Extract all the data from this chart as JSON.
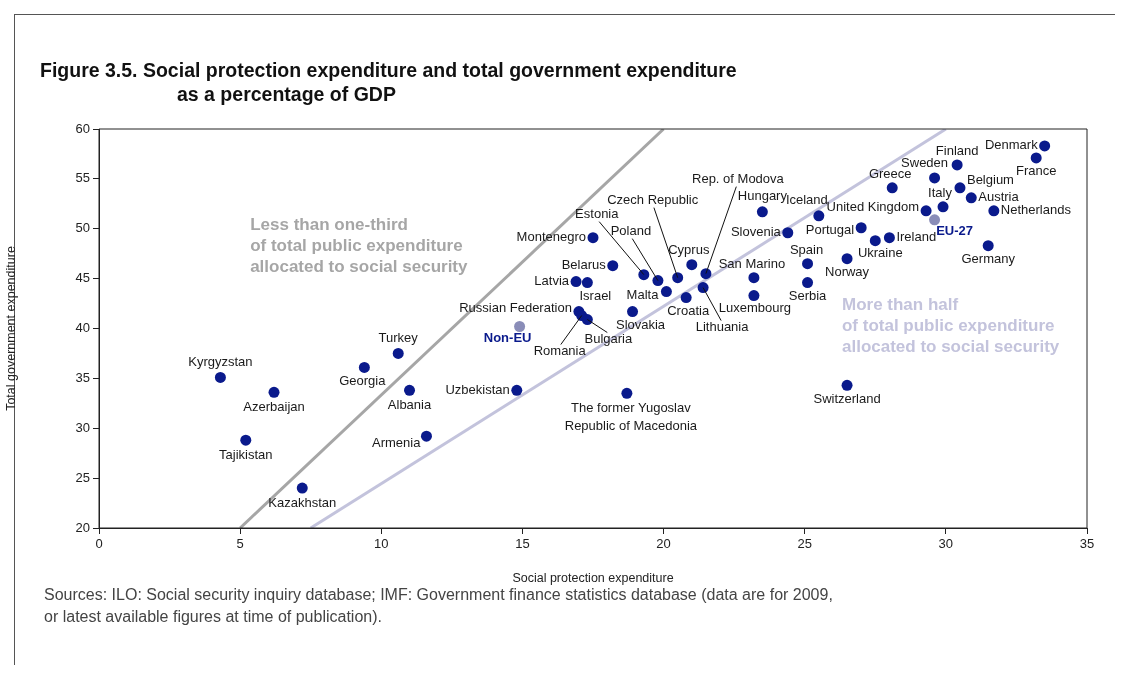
{
  "chart_data": {
    "type": "scatter",
    "title": "Figure 3.5.  Social protection expenditure and total government expenditure\nas a percentage of GDP",
    "xlabel": "Social protection expenditure",
    "ylabel": "Total government expenditure",
    "xlim": [
      0,
      35
    ],
    "xticks": [
      0,
      5,
      10,
      15,
      20,
      25,
      30,
      35
    ],
    "ylim": [
      20,
      60
    ],
    "yticks": [
      20,
      25,
      30,
      35,
      40,
      45,
      50,
      55,
      60
    ],
    "marker": "circle",
    "legend": false,
    "series": [
      {
        "type": "scatter",
        "color": "#0a1a8c",
        "x": [
          4.3,
          6.2,
          5.2,
          7.2,
          9.4,
          10.6,
          11.0,
          11.6,
          14.8,
          17.0,
          17.1,
          17.3,
          16.9,
          17.3,
          18.2,
          17.5,
          18.9,
          19.3,
          19.8,
          20.1,
          20.5,
          20.8,
          21.0,
          21.5,
          21.4,
          23.5,
          23.2,
          23.2,
          24.4,
          25.5,
          25.1,
          25.1,
          26.5,
          27.0,
          27.5,
          28.0,
          28.1,
          29.3,
          29.9,
          29.6,
          30.4,
          30.5,
          30.9,
          31.7,
          31.5,
          33.5,
          33.2,
          26.5,
          18.7
        ],
        "values": [
          35.1,
          33.6,
          28.8,
          24.0,
          36.1,
          37.5,
          33.8,
          29.2,
          33.8,
          41.7,
          41.3,
          40.9,
          44.7,
          44.6,
          46.3,
          49.1,
          41.7,
          45.4,
          44.8,
          43.7,
          45.1,
          43.1,
          46.4,
          45.5,
          44.1,
          51.7,
          45.1,
          43.3,
          49.6,
          51.3,
          46.5,
          44.6,
          47.0,
          50.1,
          48.8,
          49.1,
          54.1,
          51.8,
          52.2,
          55.1,
          56.4,
          54.1,
          53.1,
          51.8,
          48.3,
          58.3,
          57.1,
          34.3,
          33.5
        ]
      },
      {
        "type": "scatter",
        "color": "#8a8db8",
        "x": [
          14.9,
          29.6
        ],
        "values": [
          40.2,
          50.9
        ]
      },
      {
        "type": "line",
        "marker": "none",
        "name": "Less than one-third\nof total public expenditure\nallocated to social security",
        "color": "#a6a6a6",
        "x": [
          5,
          20
        ],
        "values": [
          20,
          60
        ]
      },
      {
        "type": "line",
        "marker": "none",
        "name": "More than half\nof total public expenditure\nallocated to social security",
        "color": "#c3c3dc",
        "x": [
          7.5,
          30
        ],
        "values": [
          20,
          60
        ]
      }
    ],
    "annotations": [
      {
        "text": "Kyrgyzstan",
        "x": 4.3,
        "y": 35.1
      },
      {
        "text": "Azerbaijan",
        "x": 6.2,
        "y": 33.6
      },
      {
        "text": "Tajikistan",
        "x": 5.2,
        "y": 28.8
      },
      {
        "text": "Kazakhstan",
        "x": 7.2,
        "y": 24.0
      },
      {
        "text": "Georgia",
        "x": 9.4,
        "y": 36.1
      },
      {
        "text": "Turkey",
        "x": 10.6,
        "y": 37.5
      },
      {
        "text": "Albania",
        "x": 11.0,
        "y": 33.8
      },
      {
        "text": "Armenia",
        "x": 11.6,
        "y": 29.2
      },
      {
        "text": "Uzbekistan",
        "x": 14.8,
        "y": 33.8
      },
      {
        "text": "Russian Federation",
        "x": 17.0,
        "y": 41.7
      },
      {
        "text": "Romania",
        "x": 17.1,
        "y": 41.3
      },
      {
        "text": "Bulgaria",
        "x": 17.3,
        "y": 40.9
      },
      {
        "text": "Latvia",
        "x": 16.9,
        "y": 44.7
      },
      {
        "text": "Israel",
        "x": 17.3,
        "y": 44.6
      },
      {
        "text": "Belarus",
        "x": 18.2,
        "y": 46.3
      },
      {
        "text": "Montenegro",
        "x": 17.5,
        "y": 49.1
      },
      {
        "text": "Slovakia",
        "x": 18.9,
        "y": 41.7
      },
      {
        "text": "Estonia",
        "x": 19.3,
        "y": 45.4
      },
      {
        "text": "Poland",
        "x": 19.8,
        "y": 44.8
      },
      {
        "text": "Malta",
        "x": 20.1,
        "y": 43.7
      },
      {
        "text": "Czech Republic",
        "x": 20.5,
        "y": 45.1
      },
      {
        "text": "Croatia",
        "x": 20.8,
        "y": 43.1
      },
      {
        "text": "Cyprus",
        "x": 21.0,
        "y": 46.4
      },
      {
        "text": "Rep. of Modova",
        "x": 21.5,
        "y": 45.5
      },
      {
        "text": "Lithuania",
        "x": 21.4,
        "y": 44.1
      },
      {
        "text": "Hungary",
        "x": 23.5,
        "y": 51.7
      },
      {
        "text": "San Marino",
        "x": 23.2,
        "y": 45.1
      },
      {
        "text": "Luxembourg",
        "x": 23.2,
        "y": 43.3
      },
      {
        "text": "Slovenia",
        "x": 24.4,
        "y": 49.6
      },
      {
        "text": "Iceland",
        "x": 25.5,
        "y": 51.3
      },
      {
        "text": "Spain",
        "x": 25.1,
        "y": 46.5
      },
      {
        "text": "Serbia",
        "x": 25.1,
        "y": 44.6
      },
      {
        "text": "Norway",
        "x": 26.5,
        "y": 47.0
      },
      {
        "text": "Portugal",
        "x": 27.0,
        "y": 50.1
      },
      {
        "text": "Ukraine",
        "x": 27.5,
        "y": 48.8
      },
      {
        "text": "Ireland",
        "x": 28.0,
        "y": 49.1
      },
      {
        "text": "Greece",
        "x": 28.1,
        "y": 54.1
      },
      {
        "text": "United Kingdom",
        "x": 29.3,
        "y": 51.8
      },
      {
        "text": "Italy",
        "x": 29.9,
        "y": 52.2
      },
      {
        "text": "Sweden",
        "x": 29.6,
        "y": 55.1
      },
      {
        "text": "Finland",
        "x": 30.4,
        "y": 56.4
      },
      {
        "text": "Belgium",
        "x": 30.5,
        "y": 54.1
      },
      {
        "text": "Austria",
        "x": 30.9,
        "y": 53.1
      },
      {
        "text": "Netherlands",
        "x": 31.7,
        "y": 51.8
      },
      {
        "text": "Germany",
        "x": 31.5,
        "y": 48.3
      },
      {
        "text": "Denmark",
        "x": 33.5,
        "y": 58.3
      },
      {
        "text": "France",
        "x": 33.2,
        "y": 57.1
      },
      {
        "text": "Switzerland",
        "x": 26.5,
        "y": 34.3
      },
      {
        "text": "The former Yugoslav\nRepublic of Macedonia",
        "x": 18.7,
        "y": 33.5
      },
      {
        "text": "Non-EU",
        "x": 14.9,
        "y": 40.2
      },
      {
        "text": "EU-27",
        "x": 29.6,
        "y": 50.9
      },
      "Sources: ILO: Social security inquiry database; IMF: Government finance statistics database (data are for 2009,\nor latest available figures at time of publication)."
    ]
  }
}
